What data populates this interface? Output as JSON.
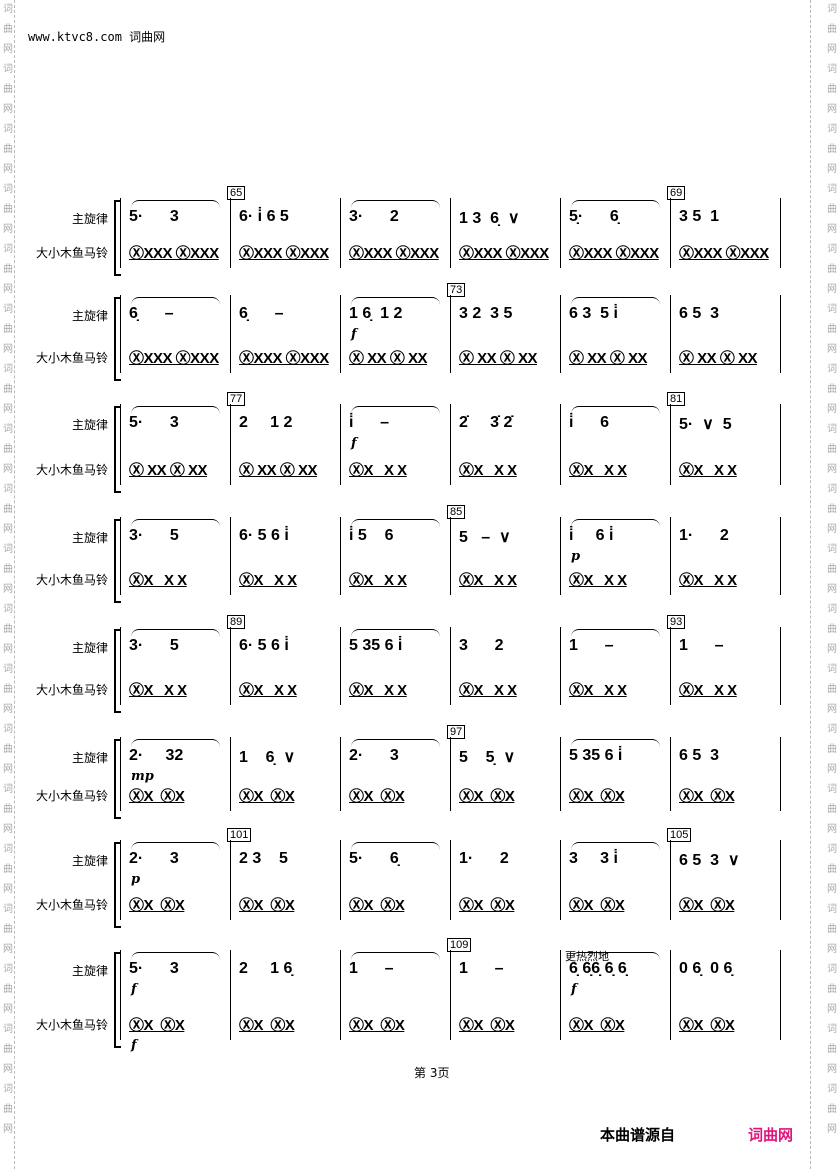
{
  "header": {
    "site": "www.ktvc8.com 词曲网"
  },
  "watermark": {
    "text": "词曲网"
  },
  "labels": {
    "melody": "主旋律",
    "percussion": "大小木鱼马铃"
  },
  "systems": [
    {
      "melody": [
        "5·      3",
        "6· i̇ 6 5",
        "3·      2",
        "1 3  6̣  ∨",
        "5̣·      6̣",
        "3 5  1"
      ],
      "percussion": [
        "ⓍXXX ⓍXXX",
        "ⓍXXX ⓍXXX",
        "ⓍXXX ⓍXXX",
        "ⓍXXX ⓍXXX",
        "ⓍXXX ⓍXXX",
        "ⓍXXX ⓍXXX"
      ],
      "rehearsal": {
        "1": "65",
        "5": "69"
      },
      "dynamics": {}
    },
    {
      "melody": [
        "6̣      –",
        "6̣      –",
        "1 6̣  1 2",
        "3 2  3 5",
        "6 3  5 i̇",
        "6 5  3"
      ],
      "percussion": [
        "ⓍXXX ⓍXXX",
        "ⓍXXX ⓍXXX",
        "Ⓧ XX Ⓧ XX",
        "Ⓧ XX Ⓧ XX",
        "Ⓧ XX Ⓧ XX",
        "Ⓧ XX Ⓧ XX"
      ],
      "rehearsal": {
        "3": "73"
      },
      "dynamics": {
        "2": "f"
      }
    },
    {
      "melody": [
        "5·      3",
        "2     1 2",
        "i̇      –",
        "2̇     3̇ 2̇",
        "i̇      6",
        "5·  ∨  5"
      ],
      "percussion": [
        "Ⓧ XX Ⓧ XX",
        "Ⓧ XX Ⓧ XX",
        "ⓍX   X X",
        "ⓍX   X X",
        "ⓍX   X X",
        "ⓍX   X X"
      ],
      "rehearsal": {
        "1": "77",
        "5": "81"
      },
      "dynamics": {
        "2": "f"
      }
    },
    {
      "melody": [
        "3·      5",
        "6· 5 6 i̇",
        "i̇ 5    6",
        "5   –  ∨",
        "i̇     6 i̇",
        "1·      2"
      ],
      "percussion": [
        "ⓍX   X X",
        "ⓍX   X X",
        "ⓍX   X X",
        "ⓍX   X X",
        "ⓍX   X X",
        "ⓍX   X X"
      ],
      "rehearsal": {
        "3": "85"
      },
      "dynamics": {
        "4": "p"
      }
    },
    {
      "melody": [
        "3·      5",
        "6· 5 6 i̇",
        "5 35 6 i̇",
        "3      2",
        "1      –",
        "1      –"
      ],
      "percussion": [
        "ⓍX   X X",
        "ⓍX   X X",
        "ⓍX   X X",
        "ⓍX   X X",
        "ⓍX   X X",
        "ⓍX   X X"
      ],
      "rehearsal": {
        "1": "89",
        "5": "93"
      },
      "dynamics": {}
    },
    {
      "melody": [
        "2·     32",
        "1    6̣  ∨",
        "2·      3",
        "5    5̣  ∨",
        "5 35 6 i̇",
        "6 5  3"
      ],
      "percussion": [
        "ⓍX  ⓍX",
        "ⓍX  ⓍX",
        "ⓍX  ⓍX",
        "ⓍX  ⓍX",
        "ⓍX  ⓍX",
        "ⓍX  ⓍX"
      ],
      "rehearsal": {
        "3": "97"
      },
      "dynamics": {
        "0": "mp"
      }
    },
    {
      "melody": [
        "2·      3",
        "2 3    5",
        "5·      6̣",
        "1·      2",
        "3     3 i̇",
        "6 5  3  ∨"
      ],
      "percussion": [
        "ⓍX  ⓍX",
        "ⓍX  ⓍX",
        "ⓍX  ⓍX",
        "ⓍX  ⓍX",
        "ⓍX  ⓍX",
        "ⓍX  ⓍX"
      ],
      "rehearsal": {
        "1": "101",
        "5": "105"
      },
      "dynamics": {
        "0": "p"
      }
    },
    {
      "melody": [
        "5·      3",
        "2     1 6̣",
        "1      –",
        "1      –",
        "6̣ 6̣6̣ 6̣ 6̣",
        "0 6̣  0 6̣"
      ],
      "percussion": [
        "ⓍX  ⓍX",
        "ⓍX  ⓍX",
        "ⓍX  ⓍX",
        "ⓍX  ⓍX",
        "ⓍX  ⓍX",
        "ⓍX  ⓍX"
      ],
      "rehearsal": {
        "3": "109"
      },
      "dynamics": {
        "0": "f",
        "4": "f"
      },
      "percussion_dynamics": {
        "0": "f"
      },
      "annotation": {
        "4": "更热烈地"
      }
    }
  ],
  "footer": {
    "page": "第 3页",
    "source": "本曲谱源自",
    "brand": "词曲网",
    "brand_color": "#e0147c"
  }
}
